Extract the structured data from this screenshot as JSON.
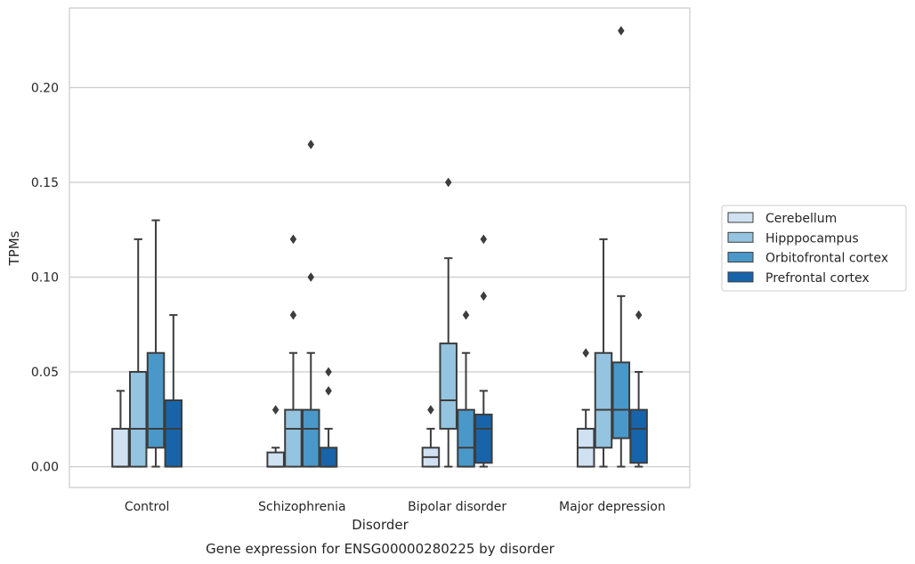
{
  "chart_data": {
    "type": "box",
    "title": "",
    "caption": "Gene expression for ENSG00000280225 by disorder",
    "xlabel": "Disorder",
    "ylabel": "TPMs",
    "ylim": [
      -0.011,
      0.242
    ],
    "yticks": [
      0.0,
      0.05,
      0.1,
      0.15,
      0.2
    ],
    "ytick_labels": [
      "0.00",
      "0.05",
      "0.10",
      "0.15",
      "0.20"
    ],
    "grid": "horizontal",
    "legend_position": "right",
    "categories": [
      "Control",
      "Schizophrenia",
      "Bipolar disorder",
      "Major depression"
    ],
    "series": [
      {
        "name": "Cerebellum",
        "color": "#d0e1f2",
        "boxes": [
          {
            "min": 0.0,
            "q1": 0.0,
            "median": 0.0,
            "q3": 0.02,
            "max": 0.04,
            "outliers": []
          },
          {
            "min": 0.0,
            "q1": 0.0,
            "median": 0.0,
            "q3": 0.0075,
            "max": 0.01,
            "outliers": [
              0.03
            ]
          },
          {
            "min": 0.0,
            "q1": 0.0,
            "median": 0.005,
            "q3": 0.01,
            "max": 0.02,
            "outliers": [
              0.03
            ]
          },
          {
            "min": 0.0,
            "q1": 0.0,
            "median": 0.01,
            "q3": 0.02,
            "max": 0.03,
            "outliers": [
              0.06
            ]
          }
        ]
      },
      {
        "name": "Hipppocampus",
        "color": "#94c4df",
        "boxes": [
          {
            "min": 0.0,
            "q1": 0.0,
            "median": 0.02,
            "q3": 0.05,
            "max": 0.12,
            "outliers": []
          },
          {
            "min": 0.0,
            "q1": 0.0,
            "median": 0.02,
            "q3": 0.03,
            "max": 0.06,
            "outliers": [
              0.08,
              0.12
            ]
          },
          {
            "min": 0.0,
            "q1": 0.02,
            "median": 0.035,
            "q3": 0.065,
            "max": 0.11,
            "outliers": [
              0.15
            ]
          },
          {
            "min": 0.0,
            "q1": 0.01,
            "median": 0.03,
            "q3": 0.06,
            "max": 0.12,
            "outliers": []
          }
        ]
      },
      {
        "name": "Orbitofrontal cortex",
        "color": "#4a98c9",
        "boxes": [
          {
            "min": 0.0,
            "q1": 0.01,
            "median": 0.02,
            "q3": 0.06,
            "max": 0.13,
            "outliers": []
          },
          {
            "min": 0.0,
            "q1": 0.0,
            "median": 0.02,
            "q3": 0.03,
            "max": 0.06,
            "outliers": [
              0.1,
              0.17
            ]
          },
          {
            "min": 0.0,
            "q1": 0.0,
            "median": 0.01,
            "q3": 0.03,
            "max": 0.06,
            "outliers": [
              0.08
            ]
          },
          {
            "min": 0.0,
            "q1": 0.015,
            "median": 0.03,
            "q3": 0.055,
            "max": 0.09,
            "outliers": [
              0.23
            ]
          }
        ]
      },
      {
        "name": "Prefrontal cortex",
        "color": "#1764ab",
        "boxes": [
          {
            "min": 0.0,
            "q1": 0.0,
            "median": 0.02,
            "q3": 0.035,
            "max": 0.08,
            "outliers": []
          },
          {
            "min": 0.0,
            "q1": 0.0,
            "median": 0.0,
            "q3": 0.01,
            "max": 0.02,
            "outliers": [
              0.04,
              0.05
            ]
          },
          {
            "min": 0.0,
            "q1": 0.002,
            "median": 0.02,
            "q3": 0.0275,
            "max": 0.04,
            "outliers": [
              0.09,
              0.12
            ]
          },
          {
            "min": 0.0,
            "q1": 0.002,
            "median": 0.02,
            "q3": 0.03,
            "max": 0.05,
            "outliers": [
              0.08
            ]
          }
        ]
      }
    ]
  }
}
